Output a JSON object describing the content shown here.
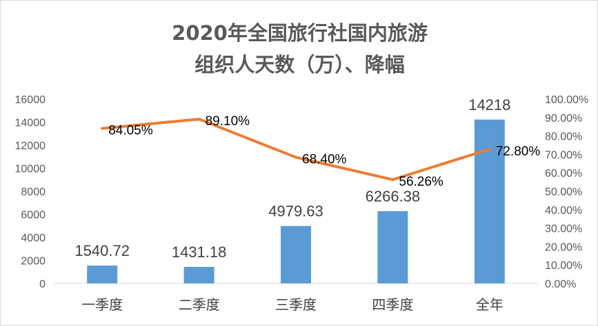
{
  "chart_data": {
    "type": "bar",
    "title_line1": "2020年全国旅行社国内旅游",
    "title_line2": "组织人天数（万）、降幅",
    "categories": [
      "一季度",
      "二季度",
      "三季度",
      "四季度",
      "全年"
    ],
    "series": [
      {
        "type": "bar",
        "axis": "left",
        "color": "#5B9BD5",
        "values": [
          1540.72,
          1431.18,
          4979.63,
          6266.38,
          14218
        ],
        "labels": [
          "1540.72",
          "1431.18",
          "4979.63",
          "6266.38",
          "14218"
        ]
      },
      {
        "type": "line",
        "axis": "right",
        "color": "#ED7D31",
        "values": [
          84.05,
          89.1,
          68.4,
          56.26,
          72.8
        ],
        "labels": [
          "84.05%",
          "89.10%",
          "68.40%",
          "56.26%",
          "72.80%"
        ]
      }
    ],
    "y_left": {
      "min": 0,
      "max": 16000,
      "ticks": [
        "0",
        "2000",
        "4000",
        "6000",
        "8000",
        "10000",
        "12000",
        "14000",
        "16000"
      ]
    },
    "y_right": {
      "min": 0,
      "max": 100,
      "ticks": [
        "0.00%",
        "10.00%",
        "20.00%",
        "30.00%",
        "40.00%",
        "50.00%",
        "60.00%",
        "70.00%",
        "80.00%",
        "90.00%",
        "100.00%"
      ]
    },
    "grid": false,
    "legend": "none"
  }
}
